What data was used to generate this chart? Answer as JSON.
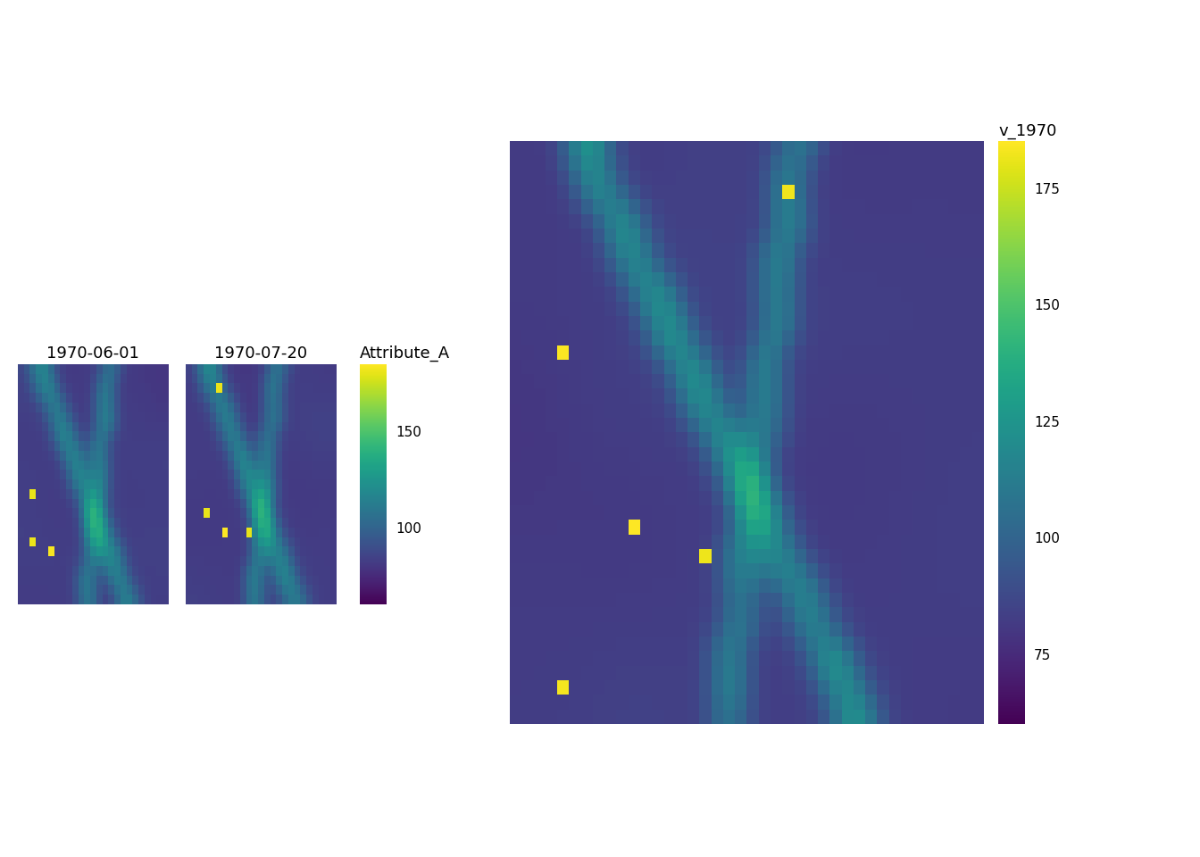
{
  "title_small1": "1970-06-01",
  "title_small2": "1970-07-20",
  "colorbar_label_small": "Attribute_A",
  "colorbar_label_large": "v_1970",
  "vmin": 60,
  "vmax": 185,
  "cmap": "viridis",
  "grid_size": 25,
  "large_grid_size": 40,
  "seed1": 42,
  "seed2": 77,
  "bg_color": "white",
  "title_fontsize": 13,
  "cb_fontsize": 13,
  "cb_tick_fontsize": 11
}
